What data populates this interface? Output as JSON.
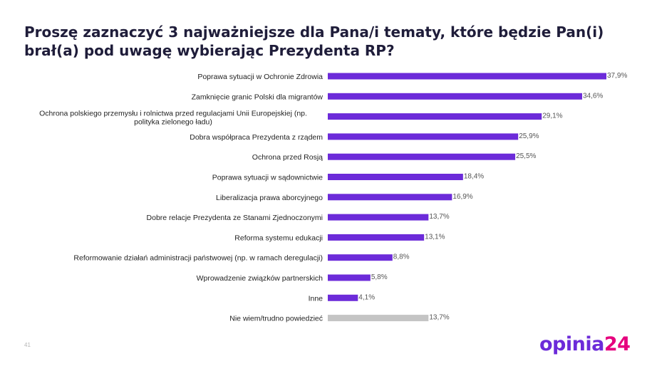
{
  "slide": {
    "title": "Proszę zaznaczyć 3 najważniejsze dla Pana/i tematy, które będzie Pan(i) brał(a) pod uwagę wybierając Prezydenta RP?",
    "page_number": "41",
    "logo_word": "opinia",
    "logo_number": "24",
    "colors": {
      "primary": "#6c2bd9",
      "secondary": "#c4c4c4",
      "accent": "#e6007e",
      "title": "#1f1d3a"
    }
  },
  "chart_data": {
    "type": "bar",
    "orientation": "horizontal",
    "title": "Proszę zaznaczyć 3 najważniejsze dla Pana/i tematy, które będzie Pan(i) brał(a) pod uwagę wybierając Prezydenta RP?",
    "xlabel": "",
    "ylabel": "",
    "xlim": [
      0,
      37.9
    ],
    "grid": false,
    "legend": "none",
    "categories": [
      "Poprawa sytuacji w Ochronie Zdrowia",
      "Zamknięcie granic Polski dla migrantów",
      "Ochrona polskiego przemysłu i rolnictwa przed regulacjami Unii Europejskiej (np. polityka zielonego ładu)",
      "Dobra współpraca Prezydenta z rządem",
      "Ochrona przed Rosją",
      "Poprawa sytuacji w sądownictwie",
      "Liberalizacja prawa aborcyjnego",
      "Dobre relacje Prezydenta ze Stanami Zjednoczonymi",
      "Reforma systemu edukacji",
      "Reformowanie działań administracji państwowej (np. w ramach deregulacji)",
      "Wprowadzenie związków partnerskich",
      "Inne",
      "Nie wiem/trudno powiedzieć"
    ],
    "values": [
      37.9,
      34.6,
      29.1,
      25.9,
      25.5,
      18.4,
      16.9,
      13.7,
      13.1,
      8.8,
      5.8,
      4.1,
      13.7
    ],
    "value_labels": [
      "37,9%",
      "34,6%",
      "29,1%",
      "25,9%",
      "25,5%",
      "18,4%",
      "16,9%",
      "13,7%",
      "13,1%",
      "8,8%",
      "5,8%",
      "4,1%",
      "13,7%"
    ],
    "bar_colors": [
      "#6c2bd9",
      "#6c2bd9",
      "#6c2bd9",
      "#6c2bd9",
      "#6c2bd9",
      "#6c2bd9",
      "#6c2bd9",
      "#6c2bd9",
      "#6c2bd9",
      "#6c2bd9",
      "#6c2bd9",
      "#6c2bd9",
      "#c4c4c4"
    ]
  }
}
